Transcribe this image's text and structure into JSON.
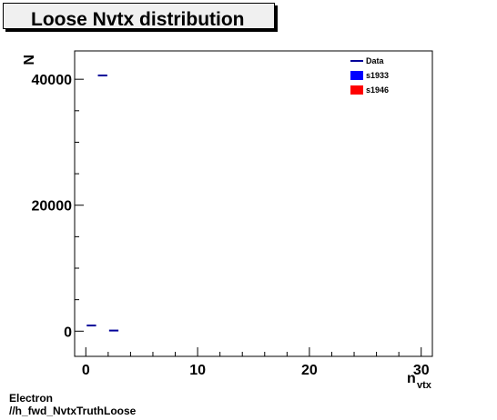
{
  "title": "Loose Nvtx distribution",
  "footer": {
    "line1": "Electron",
    "line2": "//h_fwd_NvtxTruthLoose"
  },
  "chart_data": {
    "type": "scatter",
    "title": "Loose Nvtx distribution",
    "xlabel": "n",
    "xlabel_sub": "vtx",
    "ylabel": "N",
    "xlim": [
      -1,
      31
    ],
    "ylim": [
      -4000,
      44500
    ],
    "x_ticks": [
      0,
      10,
      20,
      30
    ],
    "y_ticks": [
      0,
      20000,
      40000
    ],
    "grid": false,
    "legend_position": "top-right",
    "legend": [
      {
        "name": "Data",
        "style": "line",
        "color": "#000099"
      },
      {
        "name": "s1933",
        "style": "box",
        "color": "#0000ff"
      },
      {
        "name": "s1946",
        "style": "box",
        "color": "#ff0000"
      }
    ],
    "series": [
      {
        "name": "Data",
        "color": "#000099",
        "points": [
          {
            "x_low": 0,
            "x_high": 1,
            "y": 900
          },
          {
            "x_low": 1,
            "x_high": 2,
            "y": 40600
          },
          {
            "x_low": 2,
            "x_high": 3,
            "y": 100
          }
        ]
      }
    ]
  }
}
